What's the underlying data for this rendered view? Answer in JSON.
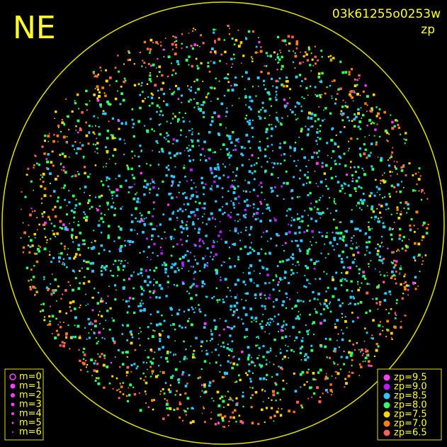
{
  "direction": "NE",
  "exposure": "03k61255o0253w",
  "quantity": "zp",
  "magnitude_legend": [
    "m=0",
    "m=1",
    "m=2",
    "m=3",
    "m=4",
    "m=5",
    "m=6"
  ],
  "zp_legend": [
    {
      "label": "zp=9.5",
      "color": "#ff40ff"
    },
    {
      "label": "zp=9.0",
      "color": "#b020ff"
    },
    {
      "label": "zp=8.5",
      "color": "#30c8ff"
    },
    {
      "label": "zp=8.0",
      "color": "#30ff70"
    },
    {
      "label": "zp=7.5",
      "color": "#ffd800"
    },
    {
      "label": "zp=7.0",
      "color": "#ff8010"
    },
    {
      "label": "zp=6.5",
      "color": "#ff6060"
    }
  ]
}
